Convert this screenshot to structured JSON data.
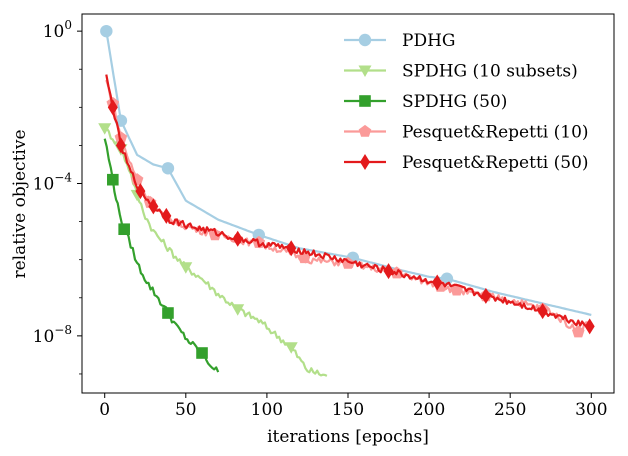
{
  "chart_data": {
    "type": "line",
    "title": "",
    "xlabel": "iterations [epochs]",
    "ylabel": "relative objective",
    "xlim": [
      -14,
      314
    ],
    "ylim_log10": [
      -9.5,
      0.45
    ],
    "xticks": [
      0,
      50,
      100,
      150,
      200,
      250,
      300
    ],
    "yticks": [
      {
        "exp": 0,
        "base": "10",
        "power": "0"
      },
      {
        "exp": -4,
        "base": "10",
        "power": "−4"
      },
      {
        "exp": -8,
        "base": "10",
        "power": "−8"
      }
    ],
    "legend_position": "upper-right",
    "series": [
      {
        "name": "PDHG",
        "color": "#a6cee3",
        "marker": "circle",
        "points": [
          [
            1,
            0.0
          ],
          [
            10,
            -2.35
          ],
          [
            20,
            -3.25
          ],
          [
            30,
            -3.5
          ],
          [
            39,
            -3.6
          ],
          [
            50,
            -4.45
          ],
          [
            70,
            -4.95
          ],
          [
            95,
            -5.35
          ],
          [
            120,
            -5.7
          ],
          [
            153,
            -5.95
          ],
          [
            180,
            -6.25
          ],
          [
            200,
            -6.45
          ],
          [
            211,
            -6.5
          ],
          [
            240,
            -6.85
          ],
          [
            270,
            -7.15
          ],
          [
            300,
            -7.45
          ]
        ],
        "markers": [
          [
            1,
            0.0
          ],
          [
            10,
            -2.35
          ],
          [
            39,
            -3.6
          ],
          [
            95,
            -5.35
          ],
          [
            153,
            -5.95
          ],
          [
            211,
            -6.5
          ]
        ]
      },
      {
        "name": "SPDHG (10 subsets)",
        "color": "#b2df8a",
        "marker": "triangle-down",
        "points": [
          [
            0,
            -2.55
          ],
          [
            5,
            -2.8
          ],
          [
            10,
            -3.1
          ],
          [
            15,
            -3.6
          ],
          [
            20,
            -4.3
          ],
          [
            25,
            -4.85
          ],
          [
            30,
            -5.25
          ],
          [
            40,
            -5.75
          ],
          [
            50,
            -6.2
          ],
          [
            60,
            -6.5
          ],
          [
            70,
            -6.9
          ],
          [
            82,
            -7.3
          ],
          [
            95,
            -7.6
          ],
          [
            105,
            -7.95
          ],
          [
            115,
            -8.3
          ],
          [
            125,
            -8.9
          ],
          [
            137,
            -9.05
          ]
        ],
        "markers": [
          [
            0,
            -2.55
          ],
          [
            10,
            -3.1
          ],
          [
            20,
            -4.3
          ],
          [
            50,
            -6.2
          ],
          [
            82,
            -7.3
          ],
          [
            115,
            -8.3
          ]
        ]
      },
      {
        "name": "SPDHG (50)",
        "color": "#33a02c",
        "marker": "square",
        "points": [
          [
            0,
            -2.8
          ],
          [
            5,
            -3.9
          ],
          [
            8,
            -4.6
          ],
          [
            12,
            -5.2
          ],
          [
            16,
            -5.6
          ],
          [
            20,
            -6.1
          ],
          [
            27,
            -6.65
          ],
          [
            32,
            -6.95
          ],
          [
            39,
            -7.4
          ],
          [
            45,
            -7.8
          ],
          [
            52,
            -8.15
          ],
          [
            60,
            -8.45
          ],
          [
            65,
            -8.75
          ],
          [
            70,
            -8.95
          ]
        ],
        "markers": [
          [
            5,
            -3.9
          ],
          [
            12,
            -5.2
          ],
          [
            39,
            -7.4
          ],
          [
            60,
            -8.45
          ]
        ]
      },
      {
        "name": "Pesquet&Repetti (10)",
        "color": "#fb9a99",
        "marker": "pentagon",
        "points": [
          [
            1,
            -1.3
          ],
          [
            5,
            -1.9
          ],
          [
            10,
            -2.8
          ],
          [
            15,
            -3.4
          ],
          [
            20,
            -3.9
          ],
          [
            28,
            -4.5
          ],
          [
            35,
            -4.8
          ],
          [
            45,
            -5.05
          ],
          [
            60,
            -5.25
          ],
          [
            75,
            -5.4
          ],
          [
            90,
            -5.55
          ],
          [
            105,
            -5.7
          ],
          [
            125,
            -6.0
          ],
          [
            150,
            -6.1
          ],
          [
            175,
            -6.3
          ],
          [
            200,
            -6.6
          ],
          [
            220,
            -6.85
          ],
          [
            250,
            -7.05
          ],
          [
            275,
            -7.35
          ],
          [
            292,
            -7.9
          ],
          [
            298,
            -7.65
          ]
        ],
        "markers": [
          [
            5,
            -1.9
          ],
          [
            10,
            -2.8
          ],
          [
            20,
            -3.9
          ],
          [
            28,
            -4.5
          ],
          [
            68,
            -5.35
          ],
          [
            95,
            -5.55
          ],
          [
            123,
            -5.95
          ],
          [
            150,
            -6.1
          ],
          [
            180,
            -6.35
          ],
          [
            207,
            -6.7
          ],
          [
            217,
            -6.8
          ],
          [
            235,
            -6.95
          ],
          [
            270,
            -7.3
          ],
          [
            292,
            -7.9
          ]
        ]
      },
      {
        "name": "Pesquet&Repetti (50)",
        "color": "#e31a1c",
        "marker": "thin-diamond",
        "points": [
          [
            1,
            -1.2
          ],
          [
            5,
            -2.0
          ],
          [
            10,
            -3.0
          ],
          [
            15,
            -3.6
          ],
          [
            22,
            -4.2
          ],
          [
            30,
            -4.6
          ],
          [
            40,
            -4.95
          ],
          [
            55,
            -5.15
          ],
          [
            70,
            -5.3
          ],
          [
            82,
            -5.45
          ],
          [
            100,
            -5.6
          ],
          [
            115,
            -5.7
          ],
          [
            130,
            -5.85
          ],
          [
            150,
            -6.05
          ],
          [
            175,
            -6.3
          ],
          [
            205,
            -6.6
          ],
          [
            235,
            -6.95
          ],
          [
            255,
            -7.15
          ],
          [
            270,
            -7.35
          ],
          [
            285,
            -7.55
          ],
          [
            299,
            -7.75
          ]
        ],
        "markers": [
          [
            5,
            -2.0
          ],
          [
            10,
            -3.0
          ],
          [
            22,
            -4.2
          ],
          [
            30,
            -4.6
          ],
          [
            38,
            -4.85
          ],
          [
            82,
            -5.45
          ],
          [
            115,
            -5.7
          ],
          [
            175,
            -6.3
          ],
          [
            205,
            -6.6
          ],
          [
            235,
            -6.95
          ],
          [
            270,
            -7.35
          ],
          [
            299,
            -7.75
          ]
        ]
      }
    ]
  }
}
